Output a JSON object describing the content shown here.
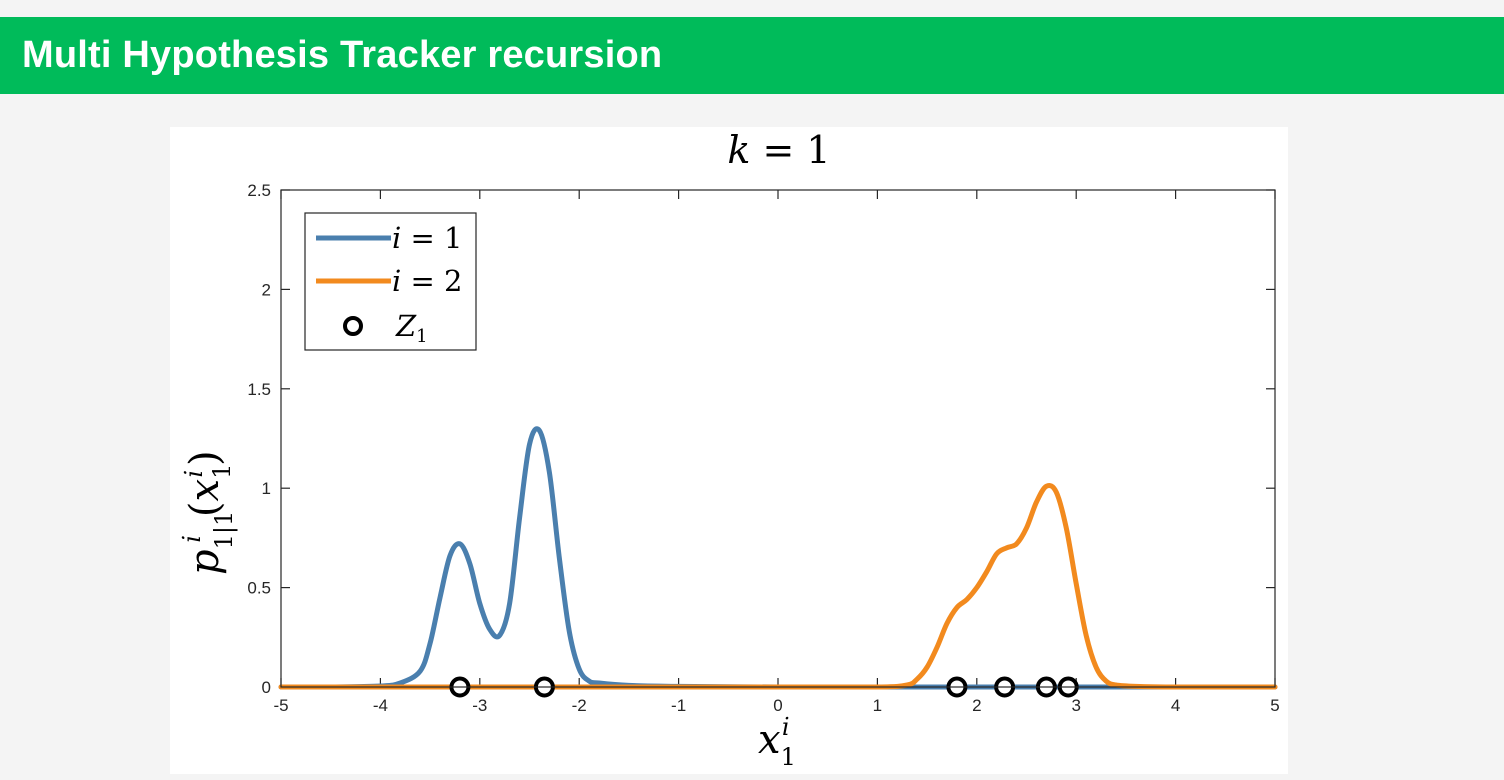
{
  "slide": {
    "title": "Multi Hypothesis Tracker recursion"
  },
  "chart_data": {
    "type": "line",
    "title": "k = 1",
    "xlabel": "x_1^i",
    "ylabel": "p_{1|1}^i(x_1^i)",
    "xlim": [
      -5,
      5
    ],
    "ylim": [
      0,
      2.5
    ],
    "xticks": [
      -5,
      -4,
      -3,
      -2,
      -1,
      0,
      1,
      2,
      3,
      4,
      5
    ],
    "yticks": [
      0,
      0.5,
      1,
      1.5,
      2,
      2.5
    ],
    "legend_position": "top-left",
    "grid": false,
    "series": [
      {
        "name": "i = 1",
        "color": "#4a7fae",
        "x": [
          -5,
          -4.5,
          -4,
          -3.8,
          -3.6,
          -3.5,
          -3.4,
          -3.3,
          -3.2,
          -3.1,
          -3.0,
          -2.9,
          -2.8,
          -2.7,
          -2.6,
          -2.5,
          -2.4,
          -2.3,
          -2.2,
          -2.1,
          -2.0,
          -1.9,
          -1.8,
          -1.5,
          -1.0,
          0,
          1,
          2,
          3,
          4,
          5
        ],
        "y": [
          0,
          0,
          0.005,
          0.02,
          0.08,
          0.22,
          0.45,
          0.66,
          0.72,
          0.62,
          0.42,
          0.29,
          0.26,
          0.42,
          0.85,
          1.22,
          1.29,
          1.08,
          0.65,
          0.28,
          0.09,
          0.03,
          0.02,
          0.008,
          0.003,
          0,
          0,
          0,
          0,
          0,
          0
        ]
      },
      {
        "name": "i = 2",
        "color": "#f28a1e",
        "x": [
          -5,
          -4,
          -3,
          -2,
          -1,
          0,
          1,
          1.3,
          1.4,
          1.5,
          1.6,
          1.7,
          1.8,
          1.9,
          2.0,
          2.1,
          2.2,
          2.3,
          2.4,
          2.5,
          2.6,
          2.7,
          2.8,
          2.9,
          3.0,
          3.1,
          3.2,
          3.3,
          3.4,
          3.6,
          4,
          5
        ],
        "y": [
          0,
          0,
          0,
          0,
          0,
          0,
          0,
          0.01,
          0.04,
          0.1,
          0.2,
          0.32,
          0.4,
          0.44,
          0.5,
          0.58,
          0.67,
          0.7,
          0.72,
          0.8,
          0.93,
          1.01,
          0.98,
          0.8,
          0.52,
          0.26,
          0.1,
          0.03,
          0.01,
          0.003,
          0,
          0
        ]
      },
      {
        "name": "Z_1",
        "type": "scatter",
        "marker": "circle",
        "color": "#000000",
        "x": [
          -3.2,
          -2.35,
          1.8,
          2.28,
          2.7,
          2.92
        ],
        "y": [
          0,
          0,
          0,
          0,
          0,
          0
        ]
      }
    ]
  }
}
